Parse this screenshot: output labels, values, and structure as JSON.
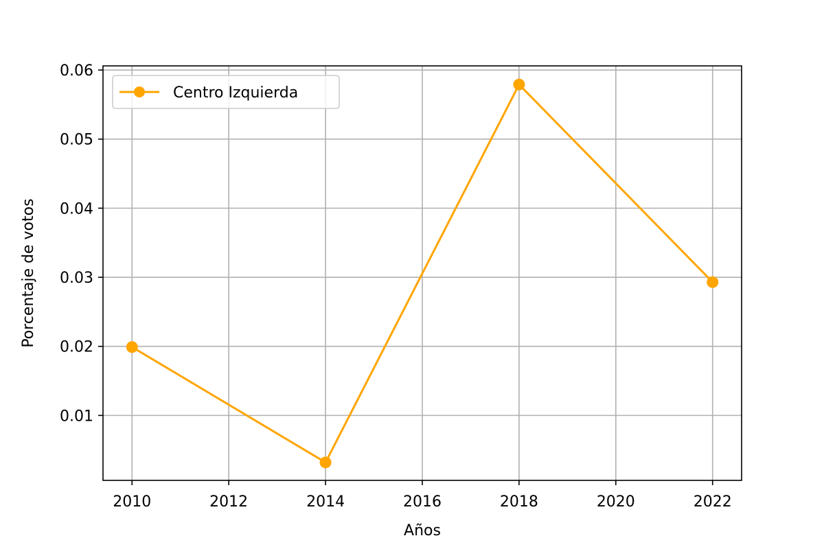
{
  "chart_data": {
    "type": "line",
    "xlabel": "Años",
    "ylabel": "Porcentaje de votos",
    "xlim": [
      2009.4,
      2022.6
    ],
    "ylim": [
      0.0006,
      0.0606
    ],
    "xticks": [
      2010,
      2012,
      2014,
      2016,
      2018,
      2020,
      2022
    ],
    "xtick_labels": [
      "2010",
      "2012",
      "2014",
      "2016",
      "2018",
      "2020",
      "2022"
    ],
    "yticks": [
      0.01,
      0.02,
      0.03,
      0.04,
      0.05,
      0.06
    ],
    "ytick_labels": [
      "0.01",
      "0.02",
      "0.03",
      "0.04",
      "0.05",
      "0.06"
    ],
    "grid": true,
    "legend_position": "upper-left",
    "series": [
      {
        "name": "Centro Izquierda",
        "color": "#ffa500",
        "marker": "circle",
        "x": [
          2010,
          2014,
          2018,
          2022
        ],
        "y": [
          0.0199,
          0.0032,
          0.0579,
          0.0293
        ]
      }
    ]
  }
}
